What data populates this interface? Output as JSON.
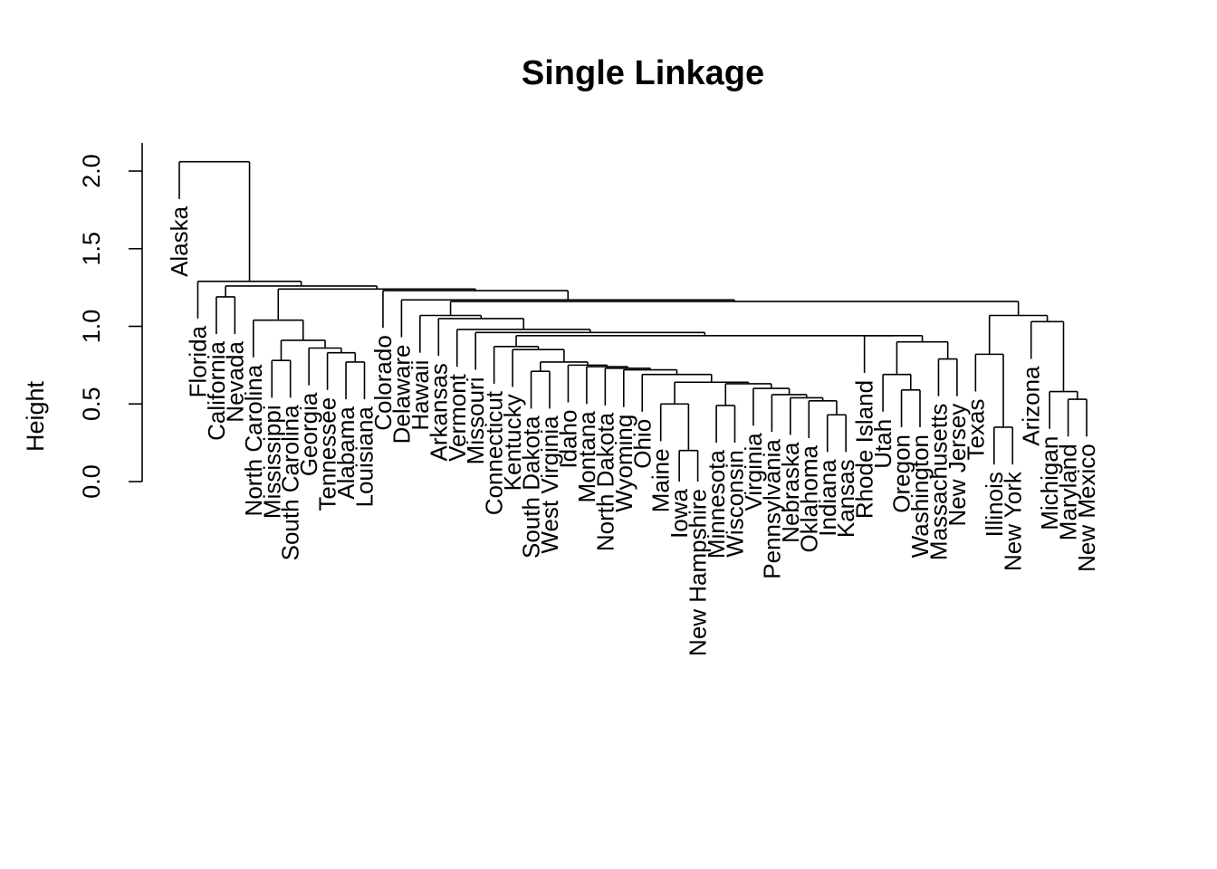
{
  "chart_data": {
    "type": "dendrogram",
    "title": "Single Linkage",
    "ylabel": "Height",
    "xlabel": "",
    "ylim": [
      0,
      2.2
    ],
    "yticks": [
      "0.0",
      "0.5",
      "1.0",
      "1.5",
      "2.0"
    ],
    "leaves": [
      "Alaska",
      "Florida",
      "California",
      "Nevada",
      "North Carolina",
      "Mississippi",
      "South Carolina",
      "Georgia",
      "Tennessee",
      "Alabama",
      "Louisiana",
      "Colorado",
      "Delaware",
      "Hawaii",
      "Arkansas",
      "Vermont",
      "Missouri",
      "Connecticut",
      "Kentucky",
      "South Dakota",
      "West Virginia",
      "Idaho",
      "Montana",
      "North Dakota",
      "Wyoming",
      "Ohio",
      "Maine",
      "Iowa",
      "New Hampshire",
      "Minnesota",
      "Wisconsin",
      "Virginia",
      "Pennsylvania",
      "Nebraska",
      "Oklahoma",
      "Indiana",
      "Kansas",
      "Rhode Island",
      "Utah",
      "Oregon",
      "Washington",
      "Massachusetts",
      "New Jersey",
      "Texas",
      "Illinois",
      "New York",
      "Arizona",
      "Michigan",
      "Maryland",
      "New Mexico"
    ],
    "merges": [
      {
        "a": "Iowa",
        "b": "New Hampshire",
        "h": 0.2
      },
      {
        "a": "Illinois",
        "b": "New York",
        "h": 0.35
      },
      {
        "a": "Indiana",
        "b": "Kansas",
        "h": 0.43
      },
      {
        "a": "Minnesota",
        "b": "Wisconsin",
        "h": 0.49
      },
      {
        "a": "Maine",
        "b": [
          "Iowa",
          "New Hampshire"
        ],
        "h": 0.5
      },
      {
        "a": "Oklahoma",
        "b": [
          "Indiana",
          "Kansas"
        ],
        "h": 0.52
      },
      {
        "a": "Maryland",
        "b": "New Mexico",
        "h": 0.53
      },
      {
        "a": "Nebraska",
        "b": [
          "Oklahoma",
          "Indiana",
          "Kansas"
        ],
        "h": 0.54
      },
      {
        "a": "Pennsylvania",
        "b": [
          "Nebraska",
          "Oklahoma",
          "Indiana",
          "Kansas"
        ],
        "h": 0.56
      },
      {
        "a": "Michigan",
        "b": [
          "Maryland",
          "New Mexico"
        ],
        "h": 0.58
      },
      {
        "a": "Washington",
        "b": "Oregon",
        "h": 0.59
      },
      {
        "a": "Virginia",
        "b": [
          "Pennsylvania",
          "Nebraska",
          "Oklahoma",
          "Indiana",
          "Kansas"
        ],
        "h": 0.6
      },
      {
        "a": [
          "Minnesota",
          "Wisconsin"
        ],
        "b": [
          "Virginia",
          "Pennsylvania",
          "Nebraska",
          "Oklahoma",
          "Indiana",
          "Kansas"
        ],
        "h": 0.63
      },
      {
        "a": [
          "Maine",
          "Iowa",
          "New Hampshire"
        ],
        "b": [
          "Minnesota",
          "Wisconsin",
          "Virginia",
          "Pennsylvania",
          "Nebraska",
          "Oklahoma",
          "Indiana",
          "Kansas"
        ],
        "h": 0.64
      },
      {
        "a": "Ohio",
        "b": [
          "Maine",
          "Iowa",
          "New Hampshire",
          "Minnesota",
          "Wisconsin",
          "Virginia",
          "Pennsylvania",
          "Nebraska",
          "Oklahoma",
          "Indiana",
          "Kansas"
        ],
        "h": 0.69
      },
      {
        "a": "Utah",
        "b": [
          "Oregon",
          "Washington"
        ],
        "h": 0.69
      },
      {
        "a": "South Dakota",
        "b": "West Virginia",
        "h": 0.71
      },
      {
        "a": "Wyoming",
        "b": [
          "Ohio",
          "Maine",
          "Iowa",
          "New Hampshire",
          "Minnesota",
          "Wisconsin",
          "Virginia",
          "Pennsylvania",
          "Nebraska",
          "Oklahoma",
          "Indiana",
          "Kansas"
        ],
        "h": 0.72
      },
      {
        "a": "North Dakota",
        "b": [
          "Wyoming",
          "..."
        ],
        "h": 0.73
      },
      {
        "a": "Montana",
        "b": [
          "North Dakota",
          "..."
        ],
        "h": 0.74
      },
      {
        "a": "Idaho",
        "b": [
          "Montana",
          "..."
        ],
        "h": 0.75
      },
      {
        "a": "Louisiana",
        "b": "Alabama",
        "h": 0.77
      },
      {
        "a": [
          "South Dakota",
          "West Virginia"
        ],
        "b": [
          "Idaho",
          "..."
        ],
        "h": 0.77
      },
      {
        "a": "Mississippi",
        "b": "South Carolina",
        "h": 0.78
      },
      {
        "a": "Massachusetts",
        "b": "New Jersey",
        "h": 0.79
      },
      {
        "a": "Texas",
        "b": [
          "Illinois",
          "New York"
        ],
        "h": 0.82
      },
      {
        "a": "Tennessee",
        "b": [
          "Alabama",
          "Louisiana"
        ],
        "h": 0.83
      },
      {
        "a": "Kentucky",
        "b": [
          "South Dakota",
          "..."
        ],
        "h": 0.85
      },
      {
        "a": "Georgia",
        "b": [
          "Tennessee",
          "Alabama",
          "Louisiana"
        ],
        "h": 0.86
      },
      {
        "a": "Connecticut",
        "b": [
          "Kentucky",
          "..."
        ],
        "h": 0.87
      },
      {
        "a": [
          "Utah",
          "Oregon",
          "Washington"
        ],
        "b": [
          "Massachusetts",
          "New Jersey"
        ],
        "h": 0.9
      },
      {
        "a": [
          "Mississippi",
          "South Carolina"
        ],
        "b": [
          "Georgia",
          "..."
        ],
        "h": 0.91
      },
      {
        "a": "Rhode Island",
        "b": [
          "Utah",
          "..."
        ],
        "h": 0.94
      },
      {
        "a": [
          "Connecticut",
          "..."
        ],
        "b": [
          "Rhode Island",
          "..."
        ],
        "h": 0.94
      },
      {
        "a": "Missouri",
        "b": [
          "Connecticut",
          "..."
        ],
        "h": 0.96
      },
      {
        "a": "Vermont",
        "b": [
          "Missouri",
          "..."
        ],
        "h": 0.98
      },
      {
        "a": "Arizona",
        "b": [
          "Michigan",
          "Maryland",
          "New Mexico"
        ],
        "h": 1.03
      },
      {
        "a": "North Carolina",
        "b": [
          "Mississippi",
          "..."
        ],
        "h": 1.04
      },
      {
        "a": "Arkansas",
        "b": [
          "Vermont",
          "..."
        ],
        "h": 1.05
      },
      {
        "a": [
          "Texas",
          "Illinois",
          "New York"
        ],
        "b": [
          "Arizona",
          "..."
        ],
        "h": 1.07
      },
      {
        "a": "Hawaii",
        "b": [
          "Arkansas",
          "..."
        ],
        "h": 1.07
      },
      {
        "a": [
          "Hawaii",
          "..."
        ],
        "b": [
          "Texas",
          "..."
        ],
        "h": 1.16
      },
      {
        "a": "Delaware",
        "b": [
          "Hawaii",
          "..."
        ],
        "h": 1.17
      },
      {
        "a": "California",
        "b": "Nevada",
        "h": 1.19
      },
      {
        "a": "Colorado",
        "b": [
          "Delaware",
          "..."
        ],
        "h": 1.23
      },
      {
        "a": [
          "North Carolina",
          "..."
        ],
        "b": [
          "Colorado",
          "..."
        ],
        "h": 1.24
      },
      {
        "a": [
          "California",
          "Nevada"
        ],
        "b": [
          "North Carolina",
          "..."
        ],
        "h": 1.26
      },
      {
        "a": "Florida",
        "b": [
          "California",
          "..."
        ],
        "h": 1.29
      },
      {
        "a": "Alaska",
        "b": [
          "Florida",
          "..."
        ],
        "h": 2.06
      }
    ]
  }
}
